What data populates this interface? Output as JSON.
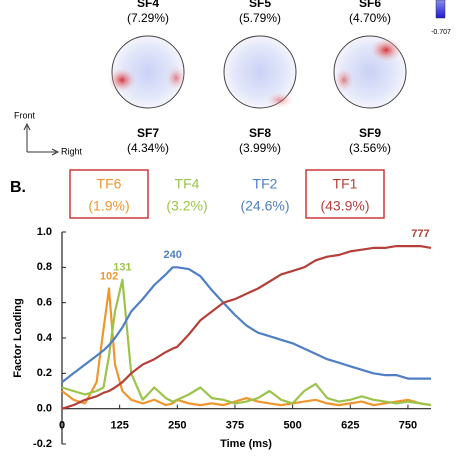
{
  "figure": {
    "topomaps": [
      {
        "label": "SF4",
        "share": "(7.29%)"
      },
      {
        "label": "SF5",
        "share": "(5.79%)"
      },
      {
        "label": "SF6",
        "share": "(4.70%)"
      },
      {
        "label": "SF7",
        "share": "(4.34%)"
      },
      {
        "label": "SF8",
        "share": "(3.99%)"
      },
      {
        "label": "SF9",
        "share": "(3.56%)"
      }
    ],
    "colorbar_min": "-0.707",
    "orientation": {
      "front": "Front",
      "right": "Right"
    },
    "panel_label": "B."
  },
  "chart_data": {
    "type": "line",
    "xlabel": "Time (ms)",
    "ylabel": "Factor Loading",
    "x": [
      0,
      25,
      50,
      75,
      90,
      102,
      115,
      131,
      150,
      175,
      200,
      225,
      240,
      250,
      275,
      300,
      325,
      350,
      375,
      400,
      425,
      450,
      475,
      500,
      525,
      550,
      575,
      600,
      625,
      650,
      675,
      700,
      725,
      750,
      777,
      800
    ],
    "series": [
      {
        "name": "TF6",
        "share": "(1.9%)",
        "boxed": true,
        "color": "#f0962e",
        "values": [
          0.1,
          0.05,
          0.03,
          0.15,
          0.45,
          0.68,
          0.25,
          0.1,
          0.05,
          0.03,
          0.05,
          0.02,
          0.03,
          0.05,
          0.03,
          0.02,
          0.03,
          0.02,
          0.04,
          0.06,
          0.04,
          0.03,
          0.02,
          0.03,
          0.04,
          0.05,
          0.03,
          0.02,
          0.03,
          0.04,
          0.02,
          0.03,
          0.04,
          0.05,
          0.03,
          0.02
        ]
      },
      {
        "name": "TF4",
        "share": "(3.2%)",
        "boxed": false,
        "color": "#9cc34a",
        "values": [
          0.12,
          0.1,
          0.08,
          0.1,
          0.12,
          0.3,
          0.55,
          0.73,
          0.2,
          0.05,
          0.12,
          0.06,
          0.04,
          0.05,
          0.08,
          0.12,
          0.06,
          0.05,
          0.03,
          0.04,
          0.06,
          0.1,
          0.05,
          0.03,
          0.1,
          0.14,
          0.06,
          0.04,
          0.05,
          0.07,
          0.05,
          0.04,
          0.03,
          0.04,
          0.03,
          0.02
        ]
      },
      {
        "name": "TF2",
        "share": "(24.6%)",
        "boxed": false,
        "color": "#4f7fc4",
        "values": [
          0.15,
          0.2,
          0.25,
          0.3,
          0.33,
          0.36,
          0.4,
          0.46,
          0.55,
          0.62,
          0.7,
          0.76,
          0.8,
          0.8,
          0.79,
          0.75,
          0.67,
          0.6,
          0.53,
          0.47,
          0.43,
          0.41,
          0.39,
          0.37,
          0.34,
          0.31,
          0.28,
          0.26,
          0.24,
          0.22,
          0.2,
          0.19,
          0.19,
          0.17,
          0.17,
          0.17
        ]
      },
      {
        "name": "TF1",
        "share": "(43.9%)",
        "boxed": true,
        "color": "#b5403a",
        "values": [
          0.0,
          0.02,
          0.05,
          0.07,
          0.09,
          0.1,
          0.12,
          0.15,
          0.2,
          0.25,
          0.28,
          0.32,
          0.34,
          0.35,
          0.42,
          0.5,
          0.55,
          0.6,
          0.62,
          0.65,
          0.68,
          0.72,
          0.76,
          0.78,
          0.8,
          0.84,
          0.86,
          0.87,
          0.89,
          0.9,
          0.91,
          0.91,
          0.92,
          0.92,
          0.92,
          0.91
        ]
      }
    ],
    "annotations": [
      {
        "text": "102",
        "x": 102,
        "y": 0.68,
        "color": "#f0962e"
      },
      {
        "text": "131",
        "x": 131,
        "y": 0.73,
        "color": "#9cc34a"
      },
      {
        "text": "240",
        "x": 240,
        "y": 0.8,
        "color": "#4f7fc4"
      },
      {
        "text": "777",
        "x": 777,
        "y": 0.92,
        "color": "#b5403a"
      }
    ],
    "box_color": "#d0393a",
    "xlim": [
      0,
      800
    ],
    "ylim": [
      -0.2,
      1.0
    ],
    "xticks": [
      0,
      125,
      250,
      375,
      500,
      625,
      750
    ],
    "yticks": [
      -0.2,
      {
        "value": 0,
        "label": "0.0"
      },
      0.2,
      0.4,
      0.6,
      0.8,
      {
        "value": 1,
        "label": "1.0"
      }
    ],
    "grid": false
  }
}
